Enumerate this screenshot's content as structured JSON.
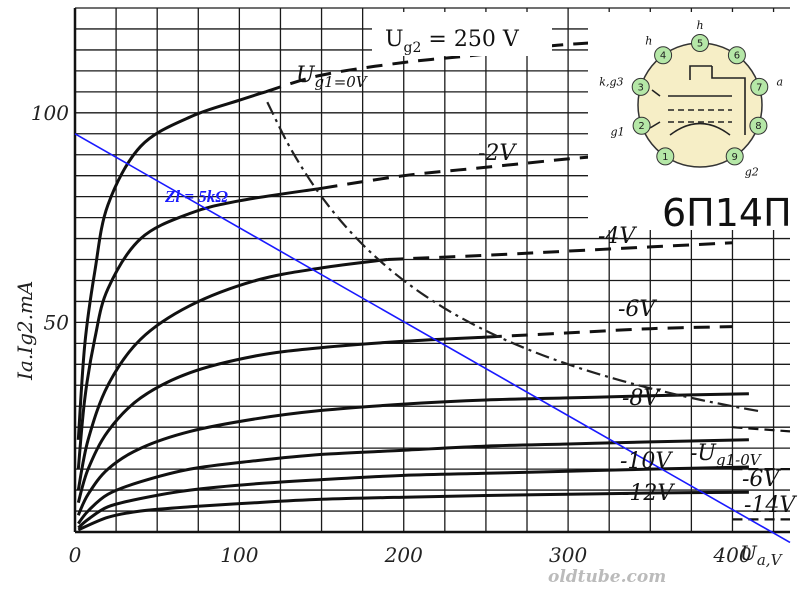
{
  "chart_data": {
    "type": "line",
    "xlabel": "Ua,V",
    "ylabel": "Ia.Ig2.mA",
    "xlim": [
      0,
      435
    ],
    "ylim": [
      0,
      125
    ],
    "x_ticks": [
      {
        "value": 0,
        "label": "0"
      },
      {
        "value": 100,
        "label": "100"
      },
      {
        "value": 200,
        "label": "200"
      },
      {
        "value": 300,
        "label": "300"
      },
      {
        "value": 400,
        "label": "400"
      }
    ],
    "y_ticks": [
      {
        "value": 50,
        "label": "50"
      },
      {
        "value": 100,
        "label": "100"
      }
    ],
    "grid": true,
    "condition": "Ug2 = 250 V",
    "plate_series": [
      {
        "label": "Ug1=0V",
        "x": [
          2,
          6,
          12,
          20,
          40,
          70,
          100,
          116
        ],
        "y": [
          22,
          45,
          62,
          78,
          92,
          99,
          103,
          105
        ],
        "dashed_x": [
          116,
          150,
          200,
          250,
          290,
          330
        ],
        "dashed_y": [
          105,
          109,
          112,
          114,
          116,
          117
        ]
      },
      {
        "label": "-2V",
        "x": [
          2,
          6,
          12,
          20,
          40,
          70,
          100,
          150
        ],
        "y": [
          15,
          32,
          46,
          58,
          70,
          76,
          79,
          82
        ],
        "dashed_x": [
          150,
          200,
          250,
          300,
          330
        ],
        "dashed_y": [
          82,
          85,
          87,
          89,
          90
        ]
      },
      {
        "label": "-4V",
        "x": [
          2,
          8,
          20,
          40,
          70,
          110,
          150,
          190
        ],
        "y": [
          10,
          22,
          35,
          46,
          54,
          60,
          63,
          65
        ],
        "dashed_x": [
          190,
          250,
          300,
          350,
          400
        ],
        "dashed_y": [
          65,
          66,
          67,
          68,
          69
        ]
      },
      {
        "label": "-6V",
        "x": [
          2,
          8,
          20,
          40,
          70,
          110,
          150,
          200,
          250
        ],
        "y": [
          7,
          15,
          24,
          32,
          38,
          42,
          44,
          45.5,
          46.5
        ],
        "dashed_x": [
          250,
          300,
          350,
          400
        ],
        "dashed_y": [
          46.5,
          47.5,
          48.5,
          49
        ]
      },
      {
        "label": "-8V",
        "x": [
          2,
          8,
          20,
          40,
          70,
          110,
          150,
          200,
          250,
          300,
          350,
          410
        ],
        "y": [
          4,
          9,
          15,
          20,
          24,
          27,
          29,
          30.5,
          31.5,
          32,
          32.5,
          33
        ]
      },
      {
        "label": "-10V",
        "x": [
          2,
          8,
          20,
          40,
          70,
          110,
          150,
          200,
          250,
          300,
          350,
          410
        ],
        "y": [
          2,
          5,
          9,
          12,
          15,
          17,
          18.5,
          19.5,
          20.5,
          21,
          21.5,
          22
        ]
      },
      {
        "label": "-12V",
        "x": [
          2,
          8,
          20,
          40,
          70,
          110,
          150,
          200,
          250,
          300,
          350,
          410
        ],
        "y": [
          1,
          3,
          6,
          8,
          10,
          11.5,
          12.5,
          13.5,
          14,
          14.5,
          15,
          15.5
        ]
      },
      {
        "label": "-14V",
        "x": [
          2,
          20,
          40,
          70,
          110,
          150,
          200,
          250,
          300,
          350,
          410
        ],
        "y": [
          0.5,
          3.5,
          5,
          6,
          7,
          7.8,
          8.3,
          8.7,
          9,
          9.3,
          9.5
        ]
      }
    ],
    "screen_series": [
      {
        "label": "Ug1=0V",
        "x": [
          400,
          435
        ],
        "y": [
          25,
          24
        ]
      },
      {
        "label": "-6V",
        "x": [
          400,
          435
        ],
        "y": [
          15,
          15
        ]
      },
      {
        "label": "-14V",
        "x": [
          400,
          435
        ],
        "y": [
          3,
          3
        ]
      }
    ],
    "load_line": {
      "label": "Zl = 5kΩ",
      "color": "#1a1aff",
      "x": [
        0,
        435
      ],
      "y": [
        95,
        -2.5
      ]
    }
  },
  "labels": {
    "condition_u": "U",
    "condition_sub": "g2",
    "condition_rest": " = 250 V",
    "tube_name": "6П14П",
    "watermark": "oldtube.com",
    "x_axis_u": "U",
    "x_axis_rest": "a,V",
    "y_axis_label": "Ia.Ig2.mA",
    "ug1_0v_u": "U",
    "ug1_0v_rest": "g1=0V",
    "ug1_0v_right_u": "-U",
    "ug1_0v_right_rest": "g1-0V",
    "m2v": "-2V",
    "m4v": "-4V",
    "m6v": "-6V",
    "m8v": "-8V",
    "m10v": "-10V",
    "m12v": "-12V",
    "m6v_right": "-6V",
    "m14v_right": "-14V",
    "load_line": "Zl = 5kΩ"
  },
  "pinout": {
    "pins": [
      "1",
      "2",
      "3",
      "4",
      "5",
      "6",
      "7",
      "8",
      "9"
    ],
    "pin_side_labels": {
      "p2": "g1",
      "p3": "k,g3",
      "p4": "h",
      "p5": "h",
      "p7": "a",
      "p9": "g2"
    }
  },
  "colors": {
    "curve": "#111111",
    "grid": "#1a1a1a",
    "load_line": "#1a1aff",
    "pin_fill": "#b5e7a7",
    "tube_base": "#f6eec6"
  }
}
